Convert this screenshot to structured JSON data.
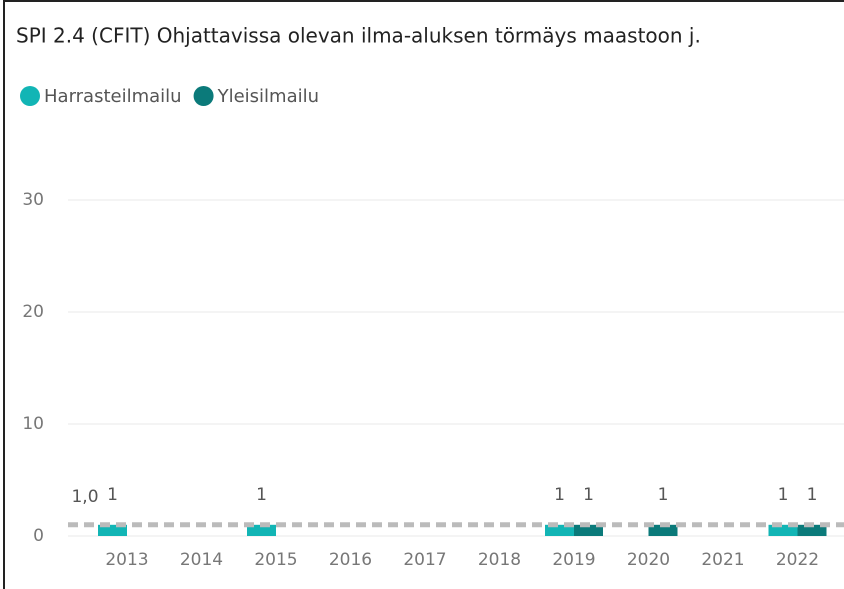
{
  "chart_data": {
    "type": "bar",
    "title": "SPI 2.4 (CFIT) Ohjattavissa olevan ilma-aluksen törmäys maastoon j.",
    "categories": [
      "2013",
      "2014",
      "2015",
      "2016",
      "2017",
      "2018",
      "2019",
      "2020",
      "2021",
      "2022"
    ],
    "series": [
      {
        "name": "Harrasteilmailu",
        "color": "#12b5b5",
        "values": [
          1,
          null,
          1,
          null,
          null,
          null,
          1,
          null,
          null,
          1
        ]
      },
      {
        "name": "Yleisilmailu",
        "color": "#0b7a7a",
        "values": [
          null,
          null,
          null,
          null,
          null,
          null,
          1,
          1,
          null,
          1
        ]
      }
    ],
    "reference_line": {
      "value": 1,
      "label": "1,0",
      "color": "#bbbbbb"
    },
    "ylim": [
      0,
      35
    ],
    "yticks": [
      0,
      10,
      20,
      30
    ],
    "grid": true,
    "legend": "top-left"
  }
}
